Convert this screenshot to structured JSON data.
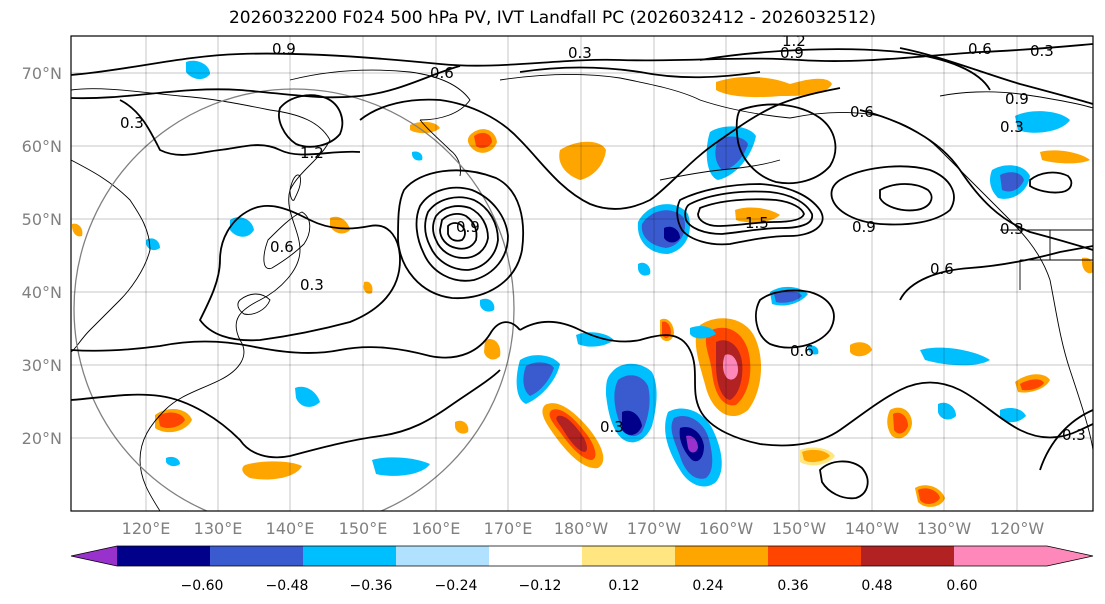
{
  "title": "2026032200 F024 500 hPa PV, IVT Landfall PC (2026032412 - 2026032512)",
  "lat_labels": [
    "70°N",
    "60°N",
    "50°N",
    "40°N",
    "30°N",
    "20°N"
  ],
  "lon_labels": [
    "120°E",
    "130°E",
    "140°E",
    "150°E",
    "160°E",
    "170°E",
    "180°W",
    "170°W",
    "160°W",
    "150°W",
    "140°W",
    "130°W",
    "120°W"
  ],
  "colorbar": {
    "ticks": [
      "−0.60",
      "−0.48",
      "−0.36",
      "−0.24",
      "−0.12",
      "0.12",
      "0.24",
      "0.36",
      "0.48",
      "0.60"
    ],
    "colors": [
      "#9932cc",
      "#00008b",
      "#3a5bd0",
      "#00bfff",
      "#b0e2ff",
      "#ffffff",
      "#ffe680",
      "#ffa500",
      "#ff4500",
      "#b22222",
      "#ff88bb",
      "#ff88bb"
    ]
  },
  "contour_labels": [
    "0.3",
    "0.6",
    "0.9",
    "1.2",
    "1.5",
    "0.3",
    "0.6",
    "0.9",
    "0.6",
    "0.3",
    "0.9",
    "0.6",
    "0.3",
    "0.9",
    "0.3",
    "0.6",
    "0.3",
    "0.9",
    "1.2",
    "0.6",
    "0.3",
    "0.3"
  ]
}
